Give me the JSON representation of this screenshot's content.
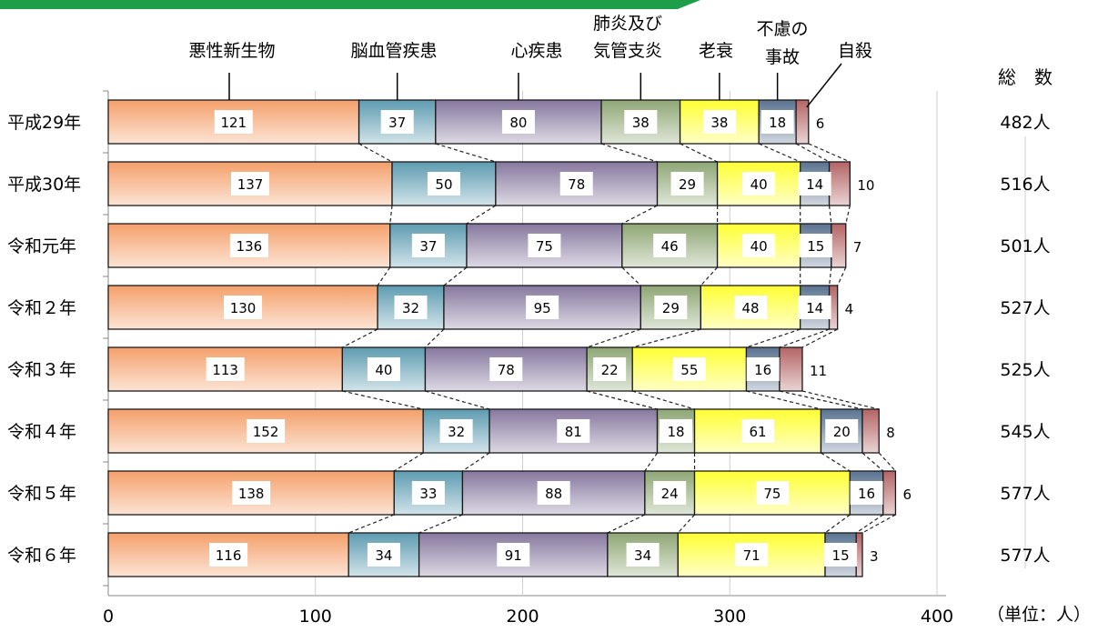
{
  "header": {
    "text": ""
  },
  "chart_data": {
    "type": "bar",
    "orientation": "horizontal",
    "stacked": true,
    "categories": [
      "平成29年",
      "平成30年",
      "令和元年",
      "令和２年",
      "令和３年",
      "令和４年",
      "令和５年",
      "令和６年"
    ],
    "series": [
      {
        "name": "悪性新生物",
        "color": "#f4a06a",
        "values": [
          121,
          137,
          136,
          130,
          113,
          152,
          138,
          116
        ]
      },
      {
        "name": "脳血管疾患",
        "color": "#5d9bb0",
        "values": [
          37,
          50,
          37,
          32,
          40,
          32,
          33,
          34
        ]
      },
      {
        "name": "心疾患",
        "color": "#86789e",
        "values": [
          80,
          78,
          75,
          95,
          78,
          81,
          88,
          91
        ]
      },
      {
        "name": "肺炎及び気管支炎",
        "color": "#8ea674",
        "values": [
          38,
          29,
          46,
          29,
          22,
          18,
          24,
          34
        ]
      },
      {
        "name": "老衰",
        "color": "#ffff33",
        "values": [
          38,
          40,
          40,
          48,
          55,
          61,
          75,
          71
        ]
      },
      {
        "name": "不慮の事故",
        "color": "#5a7390",
        "values": [
          18,
          14,
          15,
          14,
          16,
          20,
          16,
          15
        ]
      },
      {
        "name": "自殺",
        "color": "#b46464",
        "values": [
          6,
          10,
          7,
          4,
          11,
          8,
          6,
          3
        ]
      }
    ],
    "totals_header": "総　数",
    "totals": [
      "482人",
      "516人",
      "501人",
      "527人",
      "525人",
      "545人",
      "577人",
      "577人"
    ],
    "xlim": [
      0,
      400
    ],
    "xticks": [
      0,
      100,
      200,
      300,
      400
    ],
    "xticks_text": [
      "0",
      "100",
      "200",
      "300",
      "400"
    ],
    "unit_label": "（単位：人）",
    "grid": true
  }
}
